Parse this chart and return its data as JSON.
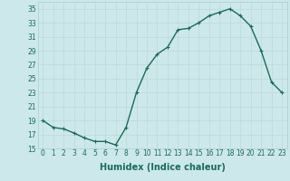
{
  "x": [
    0,
    1,
    2,
    3,
    4,
    5,
    6,
    7,
    8,
    9,
    10,
    11,
    12,
    13,
    14,
    15,
    16,
    17,
    18,
    19,
    20,
    21,
    22,
    23
  ],
  "y": [
    19,
    18.0,
    17.8,
    17.2,
    16.5,
    16.0,
    16.0,
    15.5,
    18.0,
    23.0,
    26.5,
    28.5,
    29.5,
    32.0,
    32.2,
    33.0,
    34.0,
    34.5,
    35.0,
    34.0,
    32.5,
    29.0,
    24.5,
    23.0
  ],
  "line_color": "#1a6b5a",
  "marker": "+",
  "marker_size": 3.5,
  "xlabel": "Humidex (Indice chaleur)",
  "ylim": [
    15,
    36
  ],
  "xlim": [
    -0.5,
    23.5
  ],
  "yticks": [
    15,
    17,
    19,
    21,
    23,
    25,
    27,
    29,
    31,
    33,
    35
  ],
  "xtick_labels": [
    "0",
    "1",
    "2",
    "3",
    "4",
    "5",
    "6",
    "7",
    "8",
    "9",
    "10",
    "11",
    "12",
    "13",
    "14",
    "15",
    "16",
    "17",
    "18",
    "19",
    "20",
    "21",
    "22",
    "23"
  ],
  "bg_color": "#cce8ea",
  "grid_color": "#c0d8da",
  "line_width": 1.0,
  "tick_fontsize": 5.5,
  "xlabel_fontsize": 7.0
}
